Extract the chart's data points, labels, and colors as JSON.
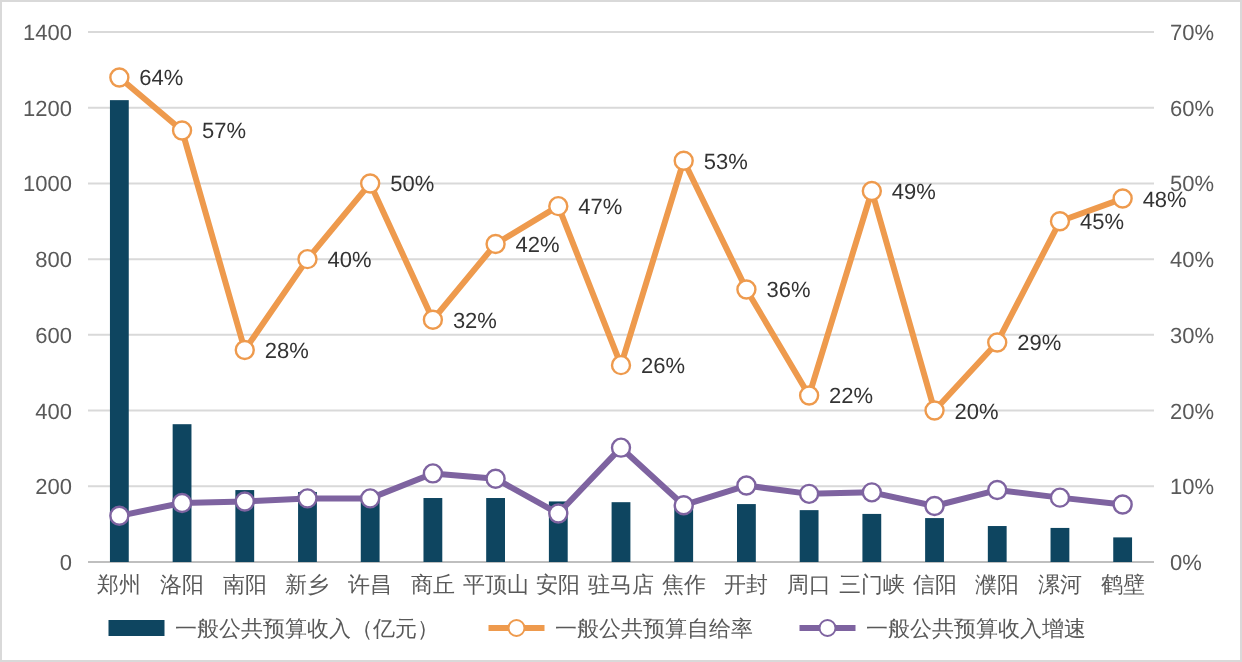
{
  "chart_data": {
    "type": "bar",
    "categories": [
      "郑州",
      "洛阳",
      "南阳",
      "新乡",
      "许昌",
      "商丘",
      "平顶山",
      "安阳",
      "驻马店",
      "焦作",
      "开封",
      "周口",
      "三门峡",
      "信阳",
      "濮阳",
      "漯河",
      "鹤壁"
    ],
    "series": [
      {
        "name": "一般公共预算收入（亿元）",
        "color": "#0e4560",
        "values": [
          1220,
          364,
          190,
          185,
          173,
          169,
          169,
          160,
          158,
          155,
          153,
          137,
          127,
          116,
          95,
          90,
          65
        ]
      },
      {
        "name": "一般公共预算自给率",
        "type": "line",
        "axis": "y2",
        "color": "#ee9a4d",
        "marker": "circle",
        "values": [
          64,
          57,
          28,
          40,
          50,
          32,
          42,
          47,
          26,
          53,
          36,
          22,
          49,
          20,
          29,
          45,
          48
        ],
        "value_labels": [
          "64%",
          "57%",
          "28%",
          "40%",
          "50%",
          "32%",
          "42%",
          "47%",
          "26%",
          "53%",
          "36%",
          "22%",
          "49%",
          "20%",
          "29%",
          "45%",
          "48%"
        ]
      },
      {
        "name": "一般公共预算收入增速",
        "type": "line",
        "axis": "y2",
        "color": "#7e63a0",
        "marker": "circle",
        "values": [
          6.1,
          7.8,
          8.0,
          8.4,
          8.4,
          11.7,
          11.0,
          6.4,
          15.1,
          7.5,
          10.1,
          9.0,
          9.2,
          7.4,
          9.5,
          8.5,
          7.6
        ]
      }
    ],
    "ylim": [
      0,
      1400
    ],
    "yticks": [
      0,
      200,
      400,
      600,
      800,
      1000,
      1200,
      1400
    ],
    "y2lim": [
      0,
      70
    ],
    "y2ticks": [
      {
        "value": 0,
        "label": "0%"
      },
      {
        "value": 10,
        "label": "10%"
      },
      {
        "value": 20,
        "label": "20%"
      },
      {
        "value": 30,
        "label": "30%"
      },
      {
        "value": 40,
        "label": "40%"
      },
      {
        "value": 50,
        "label": "50%"
      },
      {
        "value": 60,
        "label": "60%"
      },
      {
        "value": 70,
        "label": "70%"
      }
    ],
    "grid": "y",
    "legend": "bottom"
  }
}
